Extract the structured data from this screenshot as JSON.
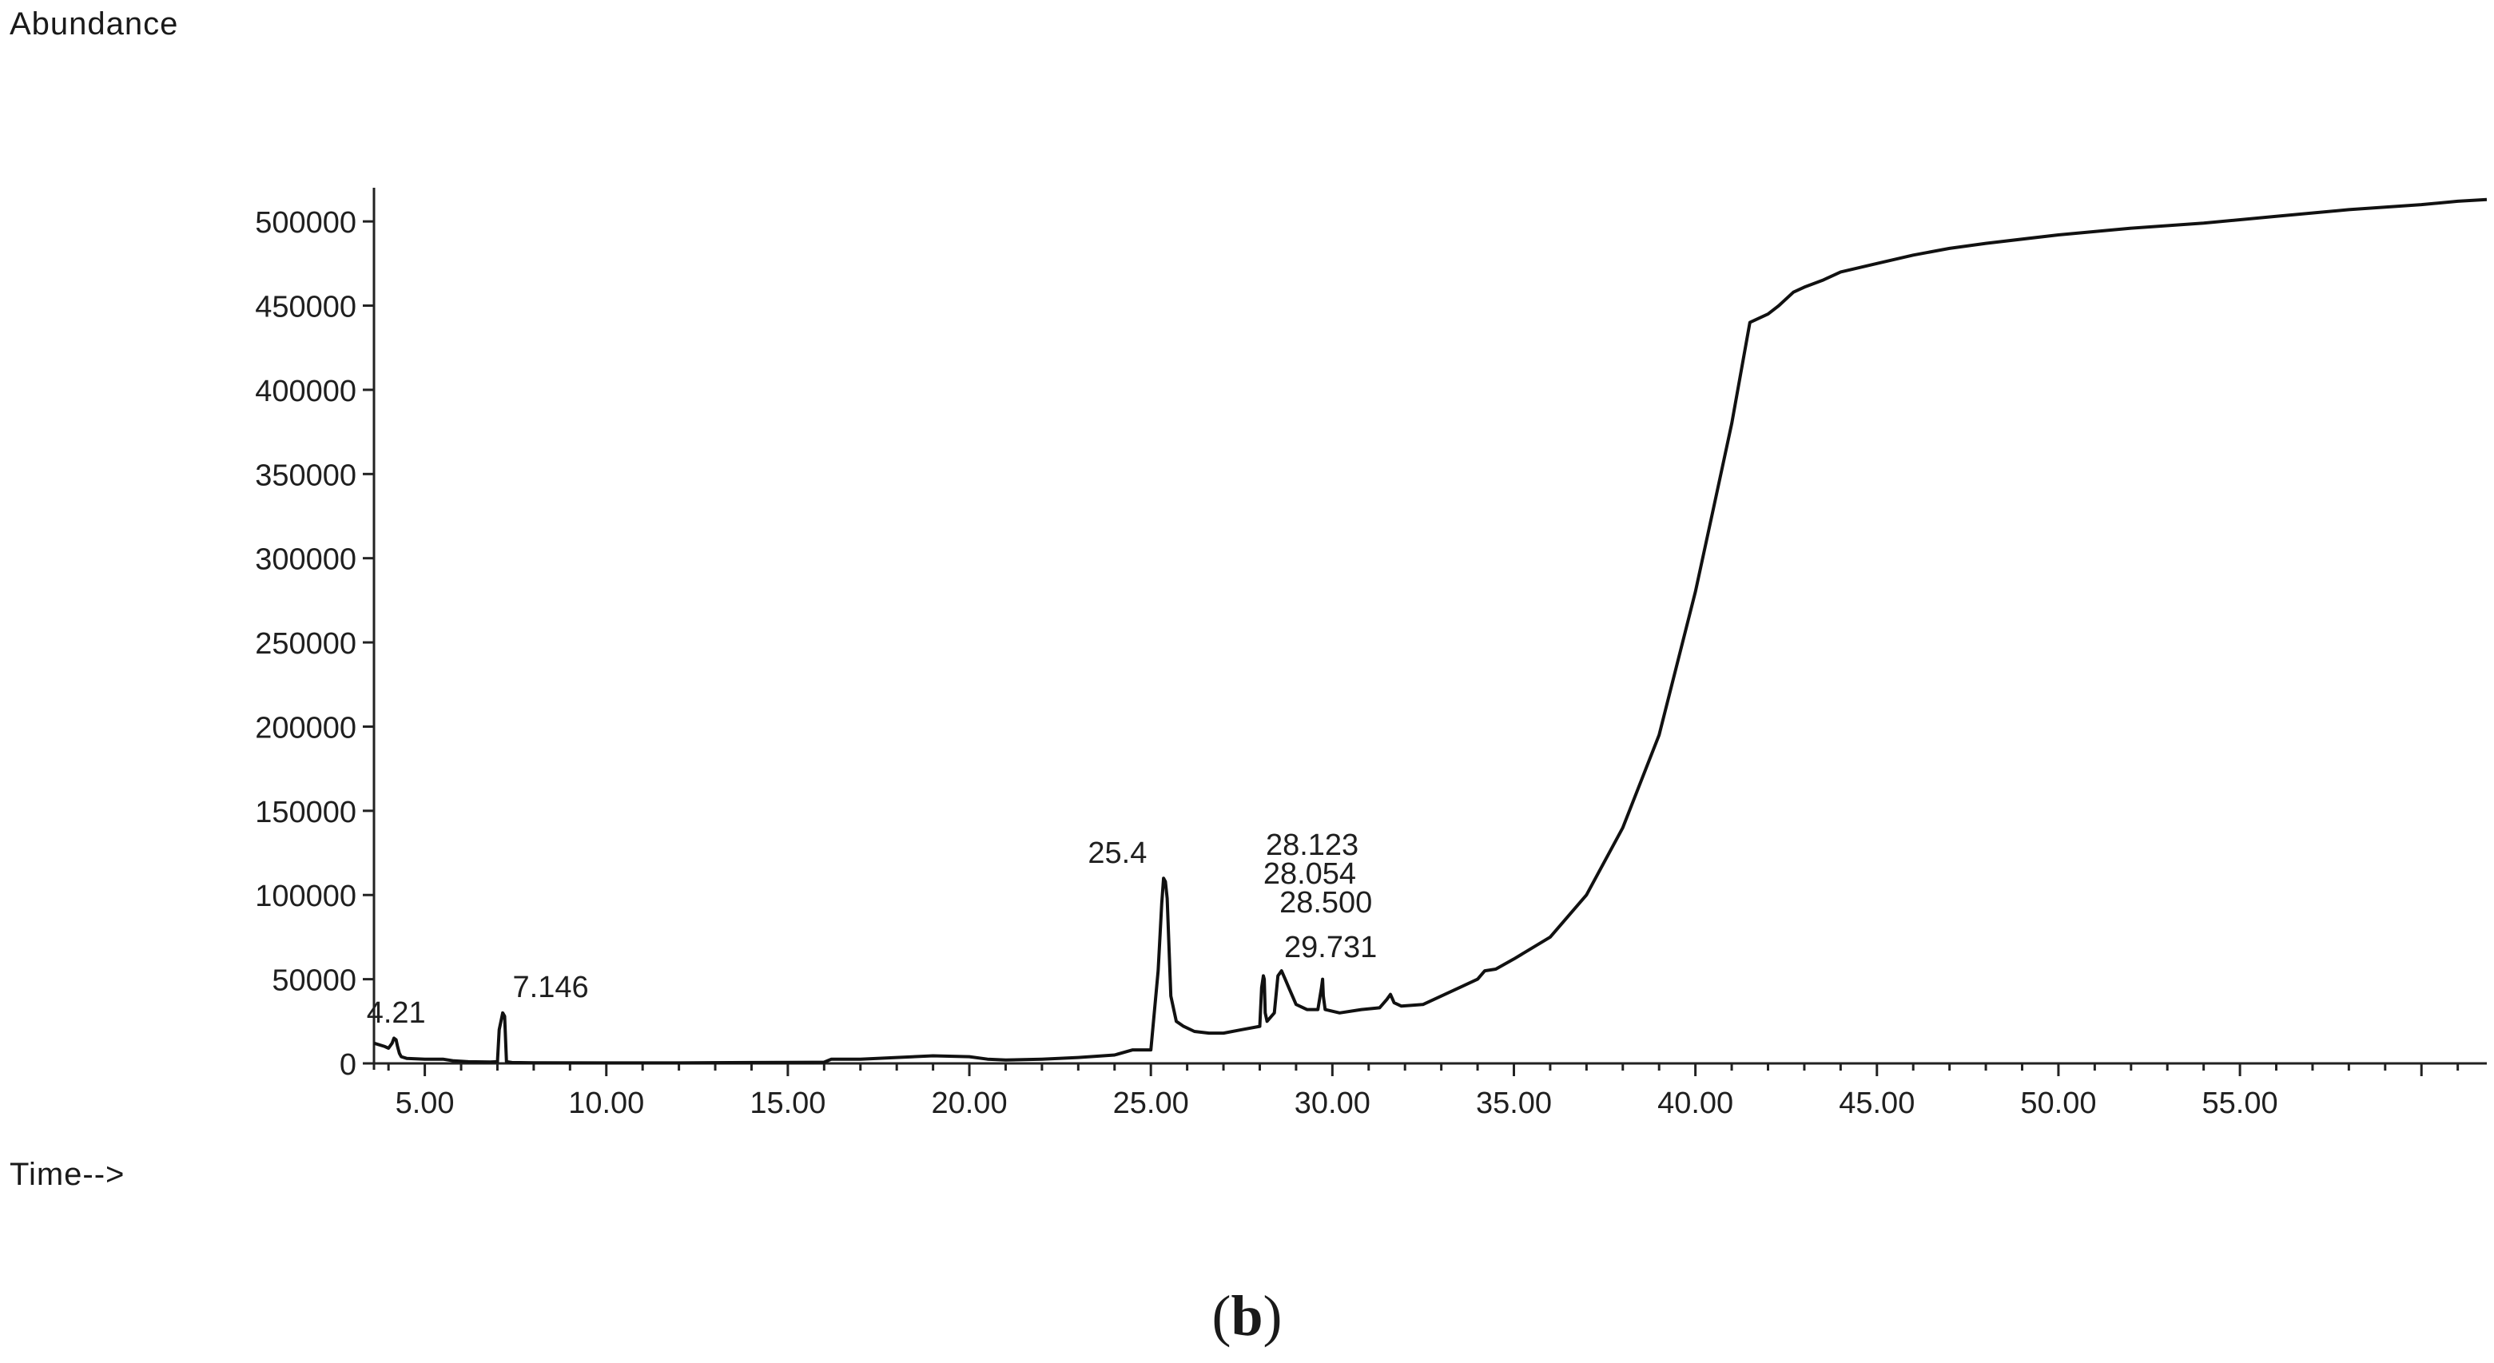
{
  "panel_label": {
    "open": "(",
    "letter": "b",
    "close": ")"
  },
  "chart_data": {
    "type": "line",
    "title": "",
    "ylabel": "Abundance",
    "xlabel": "Time-->",
    "xlim": [
      3.6,
      61.8
    ],
    "ylim": [
      0,
      520000
    ],
    "grid": false,
    "x_ticks": [
      5,
      10,
      15,
      20,
      25,
      30,
      35,
      40,
      45,
      50,
      55
    ],
    "x_tick_labels": [
      "5.00",
      "10.00",
      "15.00",
      "20.00",
      "25.00",
      "30.00",
      "35.00",
      "40.00",
      "45.00",
      "50.00",
      "55.00"
    ],
    "y_ticks": [
      0,
      50000,
      100000,
      150000,
      200000,
      250000,
      300000,
      350000,
      400000,
      450000,
      500000
    ],
    "y_tick_labels": [
      "0",
      "50000",
      "100000",
      "150000",
      "200000",
      "250000",
      "300000",
      "350000",
      "400000",
      "450000",
      "500000"
    ],
    "series": [
      {
        "x": [
          3.6,
          3.9,
          4.0,
          4.1,
          4.15,
          4.21,
          4.25,
          4.3,
          4.35,
          4.5,
          5.0,
          5.5,
          5.8,
          6.2,
          6.8,
          7.0,
          7.05,
          7.146,
          7.2,
          7.25,
          7.4,
          8.0,
          10.0,
          12.0,
          14.0,
          16.0,
          16.2,
          17.0,
          18.0,
          19.0,
          20.0,
          20.5,
          21.0,
          22.0,
          23.0,
          24.0,
          24.5,
          25.0,
          25.2,
          25.3,
          25.35,
          25.4,
          25.45,
          25.55,
          25.7,
          25.9,
          26.2,
          26.6,
          27.0,
          27.5,
          28.0,
          28.05,
          28.1,
          28.123,
          28.15,
          28.2,
          28.4,
          28.5,
          28.6,
          28.7,
          28.8,
          29.0,
          29.3,
          29.6,
          29.7,
          29.731,
          29.75,
          29.8,
          30.2,
          30.8,
          31.3,
          31.5,
          31.6,
          31.7,
          31.9,
          32.5,
          33.0,
          33.5,
          34.0,
          34.2,
          34.5,
          35.0,
          36.0,
          37.0,
          38.0,
          39.0,
          40.0,
          40.5,
          41.0,
          41.5,
          42.0,
          42.3,
          42.7,
          43.0,
          43.5,
          44.0,
          45.0,
          46.0,
          47.0,
          48.0,
          50.0,
          52.0,
          54.0,
          56.0,
          58.0,
          60.0,
          61.0,
          61.8
        ],
        "y": [
          12000,
          10000,
          9000,
          12000,
          15000,
          14000,
          10000,
          6000,
          4000,
          3000,
          2500,
          2500,
          1500,
          1000,
          800,
          1000,
          20000,
          30000,
          28000,
          1000,
          500,
          400,
          300,
          300,
          500,
          700,
          2500,
          2500,
          3500,
          4500,
          4000,
          2500,
          2000,
          2500,
          3500,
          5000,
          8000,
          8000,
          55000,
          95000,
          110000,
          108000,
          98000,
          40000,
          25000,
          22000,
          19000,
          18000,
          18000,
          20000,
          22000,
          45000,
          52000,
          50000,
          30000,
          25000,
          30000,
          52000,
          55000,
          50000,
          45000,
          35000,
          32000,
          32000,
          45000,
          50000,
          40000,
          32000,
          30000,
          32000,
          33000,
          38000,
          41000,
          36000,
          34000,
          35000,
          40000,
          45000,
          50000,
          55000,
          56000,
          62000,
          75000,
          100000,
          140000,
          195000,
          280000,
          330000,
          380000,
          440000,
          445000,
          450000,
          458000,
          461000,
          465000,
          470000,
          475000,
          480000,
          484000,
          487000,
          492000,
          496000,
          499000,
          503000,
          507000,
          510000,
          512000,
          513000
        ]
      }
    ],
    "peak_labels": [
      {
        "x": 4.21,
        "text": "4.21"
      },
      {
        "x": 7.146,
        "text": "7.146"
      },
      {
        "x": 25.4,
        "text": "25.4"
      },
      {
        "x": 28.123,
        "text": "28.123"
      },
      {
        "x": 28.054,
        "text": "28.054"
      },
      {
        "x": 28.5,
        "text": "28.500"
      },
      {
        "x": 29.731,
        "text": "29.731"
      }
    ],
    "colors": {
      "line": "#111111",
      "axis": "#222222",
      "text": "#1f1f1f"
    }
  }
}
